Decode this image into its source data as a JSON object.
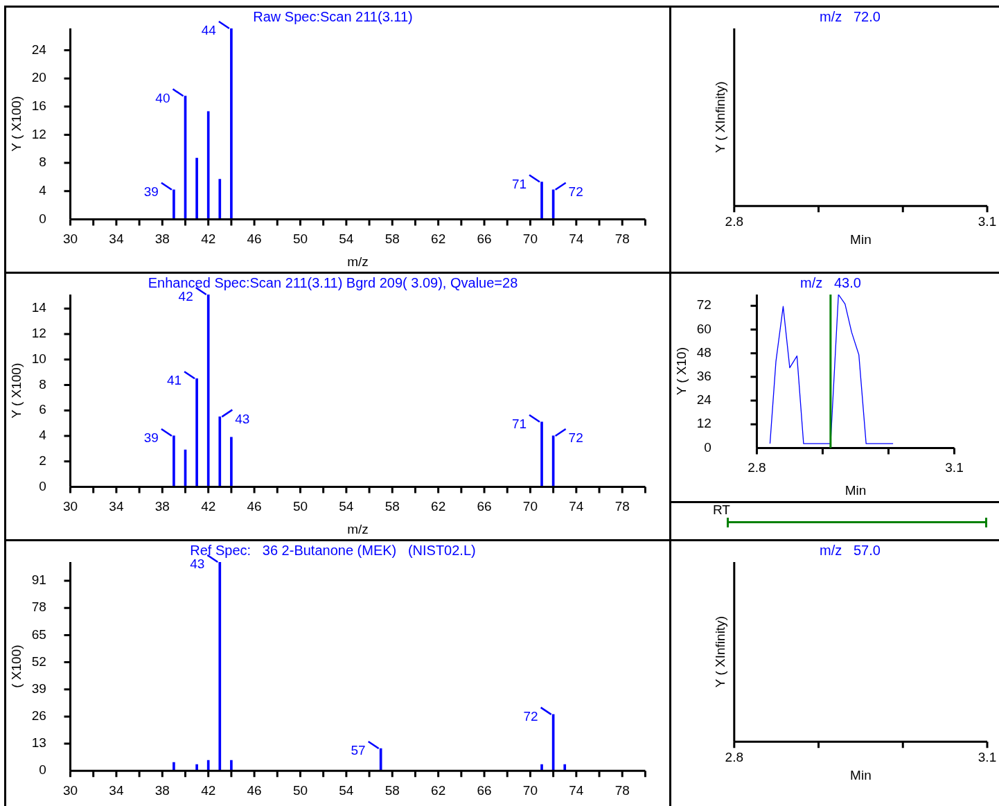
{
  "chart_data": [
    {
      "type": "bar",
      "title": "Raw Spec:Scan 211(3.11)",
      "xlabel": "m/z",
      "ylabel": "Y ( X100)",
      "color": "#0000ff",
      "x": [
        39,
        40,
        41,
        42,
        43,
        44,
        71,
        72
      ],
      "values": [
        4.2,
        17.5,
        8.7,
        15.3,
        5.7,
        27.1,
        5.3,
        4.2
      ],
      "xlim": [
        30,
        80
      ],
      "xticks": [
        30,
        {
          "value": 32,
          "label": null
        },
        34,
        {
          "value": 36,
          "label": null
        },
        38,
        {
          "value": 40,
          "label": null
        },
        42,
        {
          "value": 44,
          "label": null
        },
        46,
        {
          "value": 48,
          "label": null
        },
        50,
        {
          "value": 52,
          "label": null
        },
        54,
        {
          "value": 56,
          "label": null
        },
        58,
        {
          "value": 60,
          "label": null
        },
        62,
        {
          "value": 64,
          "label": null
        },
        66,
        {
          "value": 68,
          "label": null
        },
        70,
        {
          "value": 72,
          "label": null
        },
        74,
        {
          "value": 76,
          "label": null
        },
        78,
        {
          "value": 80,
          "label": null
        }
      ],
      "ylim": [
        0,
        27.1
      ],
      "yticks": [
        0,
        4,
        8,
        12,
        16,
        20,
        24
      ],
      "annotations": [
        {
          "text": "39",
          "x": 39,
          "y": 4.2
        },
        {
          "text": "40",
          "x": 40,
          "y": 17.5
        },
        {
          "text": "44",
          "x": 44,
          "y": 27.1
        },
        {
          "text": "71",
          "x": 71,
          "y": 5.3
        },
        {
          "text": "72",
          "x": 72,
          "y": 4.2
        }
      ]
    },
    {
      "type": "other",
      "title": "m/z   72.0",
      "xlabel": "Min",
      "ylabel": "Y ( XInfinity)",
      "annotations": [
        "2.8",
        "3.1"
      ]
    },
    {
      "type": "bar",
      "title": "Enhanced Spec:Scan 211(3.11) Bgrd 209( 3.09), Qvalue=28",
      "xlabel": "m/z",
      "ylabel": "Y ( X100)",
      "color": "#0000ff",
      "x": [
        39,
        40,
        41,
        42,
        43,
        44,
        71,
        72
      ],
      "values": [
        4.0,
        2.9,
        8.5,
        15.1,
        5.5,
        3.9,
        5.1,
        4.0
      ],
      "xlim": [
        30,
        80
      ],
      "xticks": [
        30,
        {
          "value": 32,
          "label": null
        },
        34,
        {
          "value": 36,
          "label": null
        },
        38,
        {
          "value": 40,
          "label": null
        },
        42,
        {
          "value": 44,
          "label": null
        },
        46,
        {
          "value": 48,
          "label": null
        },
        50,
        {
          "value": 52,
          "label": null
        },
        54,
        {
          "value": 56,
          "label": null
        },
        58,
        {
          "value": 60,
          "label": null
        },
        62,
        {
          "value": 64,
          "label": null
        },
        66,
        {
          "value": 68,
          "label": null
        },
        70,
        {
          "value": 72,
          "label": null
        },
        74,
        {
          "value": 76,
          "label": null
        },
        78,
        {
          "value": 80,
          "label": null
        }
      ],
      "ylim": [
        0,
        15.1
      ],
      "yticks": [
        0,
        2,
        4,
        6,
        8,
        10,
        12,
        14
      ],
      "annotations": [
        {
          "text": "39",
          "x": 39,
          "y": 4.0
        },
        {
          "text": "41",
          "x": 41,
          "y": 8.5
        },
        {
          "text": "42",
          "x": 42,
          "y": 15.1
        },
        {
          "text": "43",
          "x": 43,
          "y": 5.5
        },
        {
          "text": "71",
          "x": 71,
          "y": 5.1
        },
        {
          "text": "72",
          "x": 72,
          "y": 4.0
        }
      ]
    },
    {
      "type": "line",
      "title": "m/z   43.0",
      "xlabel": "Min",
      "ylabel": "Y ( X10)",
      "color": "#0000ff",
      "marker": "none",
      "x": [
        2.82,
        2.829,
        2.84,
        2.85,
        2.861,
        2.871,
        2.912,
        2.924,
        2.934,
        2.944,
        2.955,
        2.966,
        3.007
      ],
      "values": [
        2.2,
        43.8,
        71.7,
        40.6,
        46.6,
        2.2,
        2.2,
        77.7,
        72.9,
        58.6,
        47.2,
        2.2,
        2.2
      ],
      "xlim": [
        2.8,
        3.1
      ],
      "xticks": [
        2.8,
        {
          "value": 2.9,
          "label": null
        },
        {
          "value": 3.0,
          "label": null
        },
        3.1
      ],
      "ylim": [
        0,
        77.7
      ],
      "yticks": [
        0,
        12,
        24,
        36,
        48,
        60,
        72
      ],
      "ref_lines": [
        {
          "axis": "x",
          "value": 2.912,
          "color": "#008000"
        }
      ],
      "annotations": [
        "RT"
      ]
    },
    {
      "type": "bar",
      "title": "Ref Spec:   36 2-Butanone (MEK)   (NIST02.L)",
      "ylabel": "( X100)",
      "color": "#0000ff",
      "x": [
        39,
        41,
        42,
        43,
        44,
        57,
        71,
        72,
        73
      ],
      "values": [
        4,
        3,
        5,
        100,
        5,
        10.7,
        3,
        27,
        3
      ],
      "xlim": [
        30,
        80
      ],
      "xticks": [
        30,
        {
          "value": 32,
          "label": null
        },
        34,
        {
          "value": 36,
          "label": null
        },
        38,
        {
          "value": 40,
          "label": null
        },
        42,
        {
          "value": 44,
          "label": null
        },
        46,
        {
          "value": 48,
          "label": null
        },
        50,
        {
          "value": 52,
          "label": null
        },
        54,
        {
          "value": 56,
          "label": null
        },
        58,
        {
          "value": 60,
          "label": null
        },
        62,
        {
          "value": 64,
          "label": null
        },
        66,
        {
          "value": 68,
          "label": null
        },
        70,
        {
          "value": 72,
          "label": null
        },
        74,
        {
          "value": 76,
          "label": null
        },
        78,
        {
          "value": 80,
          "label": null
        }
      ],
      "ylim": [
        0,
        100
      ],
      "yticks": [
        0,
        13,
        26,
        39,
        52,
        65,
        78,
        91
      ],
      "annotations": [
        {
          "text": "43",
          "x": 43,
          "y": 100
        },
        {
          "text": "57",
          "x": 57,
          "y": 10.7
        },
        {
          "text": "72",
          "x": 72,
          "y": 27
        }
      ]
    },
    {
      "type": "other",
      "title": "m/z   57.0",
      "xlabel": "Min",
      "ylabel": "Y ( XInfinity)",
      "annotations": [
        "2.8",
        "3.1"
      ]
    }
  ]
}
